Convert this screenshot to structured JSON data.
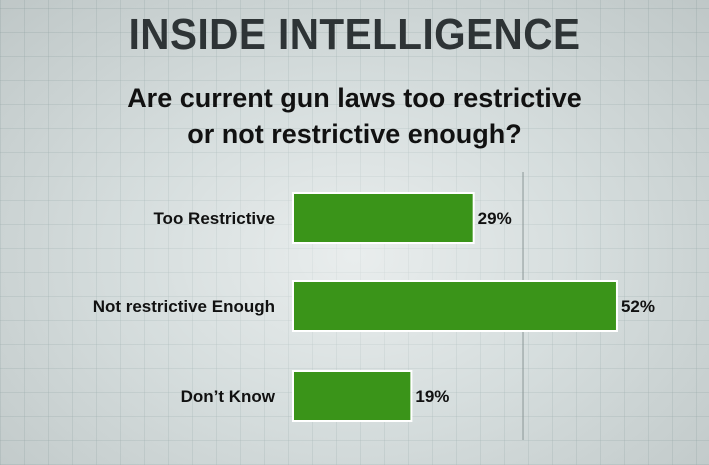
{
  "header": {
    "title": "INSIDE INTELLIGENCE",
    "question_line1": "Are current gun laws too restrictive",
    "question_line2": "or not restrictive enough?"
  },
  "colors": {
    "bar_fill": "#3a9419",
    "bar_stroke": "#ffffff",
    "gridline": "#8a9696"
  },
  "chart_data": {
    "type": "bar",
    "orientation": "horizontal",
    "title": "Are current gun laws too restrictive or not restrictive enough?",
    "categories": [
      "Too Restrictive",
      "Not restrictive Enough",
      "Don’t Know"
    ],
    "values": [
      29,
      52,
      19
    ],
    "value_labels": [
      "29%",
      "52%",
      "19%"
    ],
    "unit": "%",
    "xlim": [
      0,
      100
    ],
    "gridlines_at": [
      25,
      50
    ],
    "grid": true,
    "legend": "none"
  }
}
